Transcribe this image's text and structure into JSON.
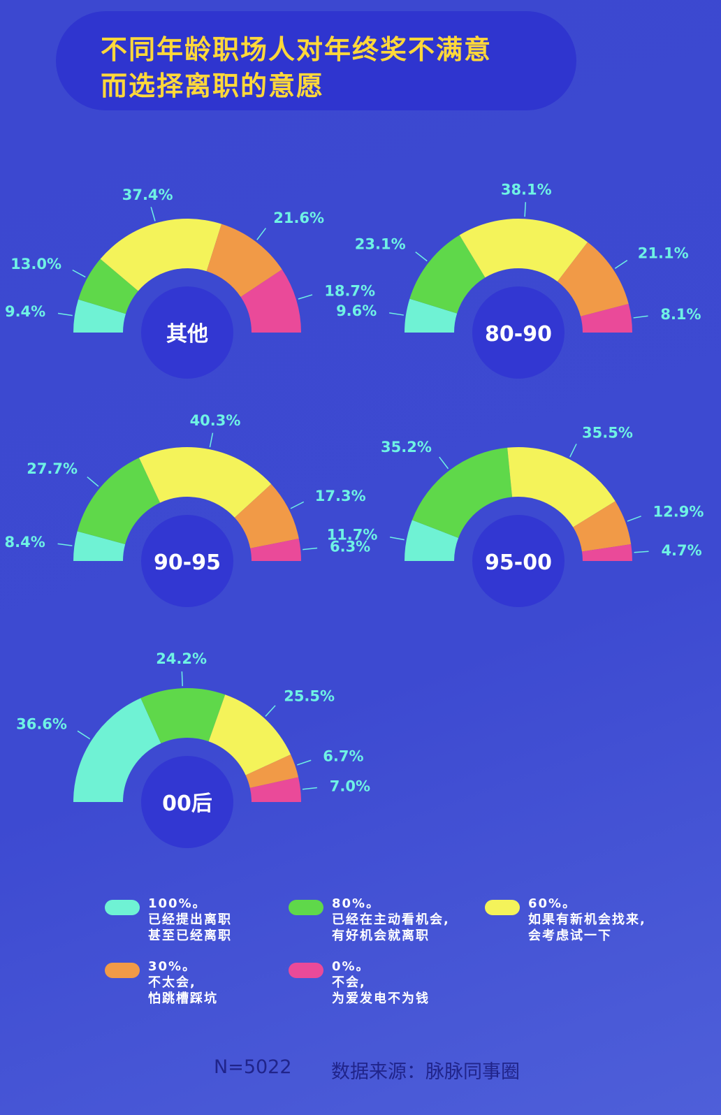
{
  "title": [
    "不同年龄职场人对年终奖不满意",
    "而选择离职的意愿"
  ],
  "colors": {
    "cat0": "#6ff2d4",
    "cat1": "#5fd84a",
    "cat2": "#f4f35a",
    "cat3": "#f19a47",
    "cat4": "#ea4a99",
    "label": "#6ff2e4",
    "hole": "#3237d2"
  },
  "chart_data": [
    {
      "type": "pie",
      "title": "其他",
      "labels": [
        "100%",
        "80%",
        "60%",
        "30%",
        "0%"
      ],
      "values": [
        9.4,
        13.0,
        37.4,
        21.6,
        18.7
      ]
    },
    {
      "type": "pie",
      "title": "80-90",
      "labels": [
        "100%",
        "80%",
        "60%",
        "30%",
        "0%"
      ],
      "values": [
        9.6,
        23.1,
        38.1,
        21.1,
        8.1
      ]
    },
    {
      "type": "pie",
      "title": "90-95",
      "labels": [
        "100%",
        "80%",
        "60%",
        "30%",
        "0%"
      ],
      "values": [
        8.4,
        27.7,
        40.3,
        17.3,
        6.3
      ]
    },
    {
      "type": "pie",
      "title": "95-00",
      "labels": [
        "100%",
        "80%",
        "60%",
        "30%",
        "0%"
      ],
      "values": [
        11.7,
        35.2,
        35.5,
        12.9,
        4.7
      ]
    },
    {
      "type": "pie",
      "title": "00后",
      "labels": [
        "100%",
        "80%",
        "60%",
        "30%",
        "0%"
      ],
      "values": [
        36.6,
        24.2,
        25.5,
        6.7,
        7.0
      ]
    }
  ],
  "legend": [
    {
      "head": "100%。",
      "lines": [
        "已经提出离职",
        "甚至已经离职"
      ]
    },
    {
      "head": "80%。",
      "lines": [
        "已经在主动看机会,",
        "有好机会就离职"
      ]
    },
    {
      "head": "60%。",
      "lines": [
        "如果有新机会找来,",
        "会考虑试一下"
      ]
    },
    {
      "head": "30%。",
      "lines": [
        "不太会,",
        "怕跳槽踩坑"
      ]
    },
    {
      "head": "0%。",
      "lines": [
        "不会,",
        "为爱发电不为钱"
      ]
    }
  ],
  "footer": {
    "n": "N=5022",
    "source": "数据来源：脉脉同事圈"
  }
}
